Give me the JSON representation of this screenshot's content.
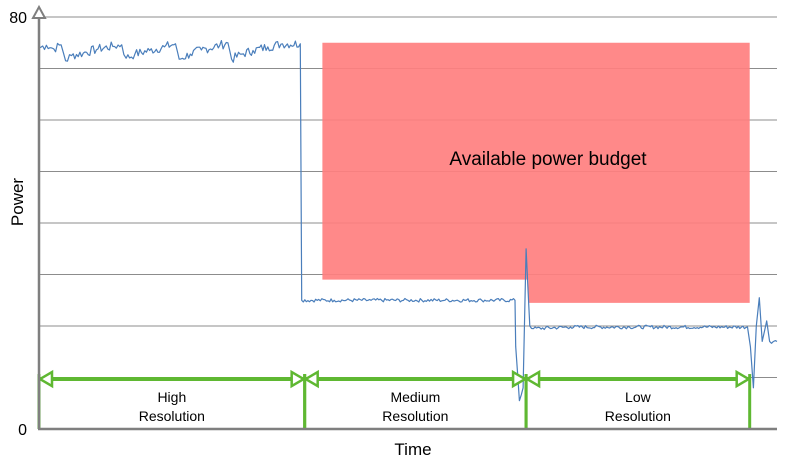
{
  "chart_data": {
    "type": "line",
    "title": "",
    "xlabel": "Time",
    "ylabel": "Power",
    "ylim": [
      0,
      80
    ],
    "xlim": [
      0,
      100
    ],
    "y_ticks": [
      {
        "value": 0,
        "label": "0"
      },
      {
        "value": 80,
        "label": "80"
      }
    ],
    "gridlines_y": [
      10,
      20,
      30,
      40,
      50,
      60,
      70,
      80
    ],
    "grid": true,
    "legend": "none",
    "series": [
      {
        "color": "#4a7ebb",
        "points": [
          [
            0,
            74
          ],
          [
            1,
            74.5
          ],
          [
            2,
            73.8
          ],
          [
            3,
            74.6
          ],
          [
            3.6,
            71.5
          ],
          [
            4.4,
            72.5
          ],
          [
            6,
            73
          ],
          [
            8,
            73.8
          ],
          [
            10,
            74.3
          ],
          [
            11.2,
            74.6
          ],
          [
            11.8,
            72
          ],
          [
            13,
            72.8
          ],
          [
            15,
            73.5
          ],
          [
            17,
            74.2
          ],
          [
            18.5,
            74.8
          ],
          [
            19,
            71.8
          ],
          [
            20.5,
            72.8
          ],
          [
            22,
            73.6
          ],
          [
            24.5,
            74.5
          ],
          [
            25.6,
            75
          ],
          [
            26.1,
            71.8
          ],
          [
            27.5,
            72.8
          ],
          [
            29,
            73.5
          ],
          [
            31,
            74.2
          ],
          [
            33,
            74.8
          ],
          [
            35.4,
            74.8
          ],
          [
            35.6,
            25
          ],
          [
            40,
            25
          ],
          [
            45,
            25
          ],
          [
            50,
            25
          ],
          [
            55,
            25
          ],
          [
            60,
            25
          ],
          [
            64.5,
            25
          ],
          [
            64.6,
            16
          ],
          [
            65.1,
            5.5
          ],
          [
            65.6,
            8
          ],
          [
            66,
            35
          ],
          [
            66.5,
            20
          ],
          [
            67,
            19.5
          ],
          [
            72,
            19.8
          ],
          [
            80,
            19.8
          ],
          [
            90,
            19.8
          ],
          [
            96,
            19.8
          ],
          [
            96.4,
            16
          ],
          [
            96.8,
            8
          ],
          [
            97.2,
            20
          ],
          [
            97.6,
            25.5
          ],
          [
            98,
            17
          ],
          [
            98.6,
            21
          ],
          [
            99,
            17
          ],
          [
            100,
            17
          ]
        ]
      }
    ],
    "shaded_region": {
      "label": "Available power budget",
      "color": "#ff7f7f",
      "steps": [
        {
          "x_start": 38.4,
          "x_end": 66.3,
          "y_bottom": 29,
          "y_top": 75
        },
        {
          "x_start": 66.3,
          "x_end": 96.3,
          "y_bottom": 24.5,
          "y_top": 75
        }
      ]
    },
    "phases": [
      {
        "label_line1": "High",
        "label_line2": "Resolution",
        "x_start": 0,
        "x_end": 36
      },
      {
        "label_line1": "Medium",
        "label_line2": "Resolution",
        "x_start": 36,
        "x_end": 66
      },
      {
        "label_line1": "Low",
        "label_line2": "Resolution",
        "x_start": 66,
        "x_end": 96.3
      }
    ],
    "phase_arrow_y": 9.7,
    "phase_color": "#5fb832"
  }
}
